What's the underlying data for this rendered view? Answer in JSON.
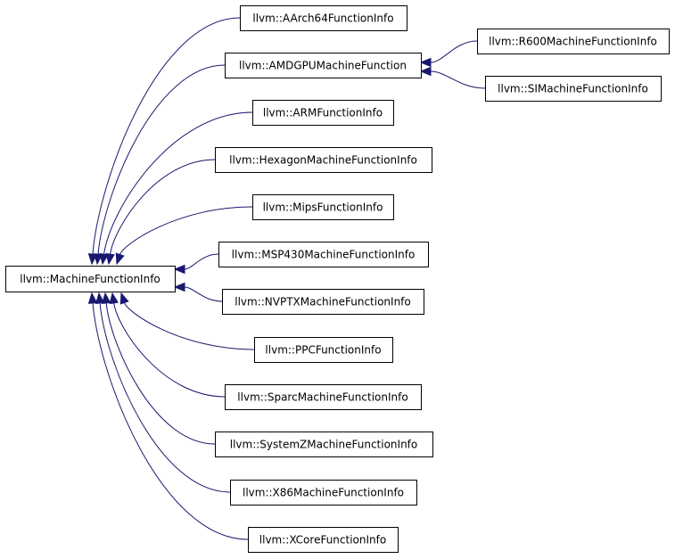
{
  "nodes": [
    {
      "label": "llvm::MachineFunctionInfo"
    },
    {
      "label": "llvm::AArch64FunctionInfo"
    },
    {
      "label": "llvm::AMDGPUMachineFunction"
    },
    {
      "label": "llvm::ARMFunctionInfo"
    },
    {
      "label": "llvm::HexagonMachineFunctionInfo"
    },
    {
      "label": "llvm::MipsFunctionInfo"
    },
    {
      "label": "llvm::MSP430MachineFunctionInfo"
    },
    {
      "label": "llvm::NVPTXMachineFunctionInfo"
    },
    {
      "label": "llvm::PPCFunctionInfo"
    },
    {
      "label": "llvm::SparcMachineFunctionInfo"
    },
    {
      "label": "llvm::SystemZMachineFunctionInfo"
    },
    {
      "label": "llvm::X86MachineFunctionInfo"
    },
    {
      "label": "llvm::XCoreFunctionInfo"
    },
    {
      "label": "llvm::R600MachineFunctionInfo"
    },
    {
      "label": "llvm::SIMachineFunctionInfo"
    }
  ]
}
